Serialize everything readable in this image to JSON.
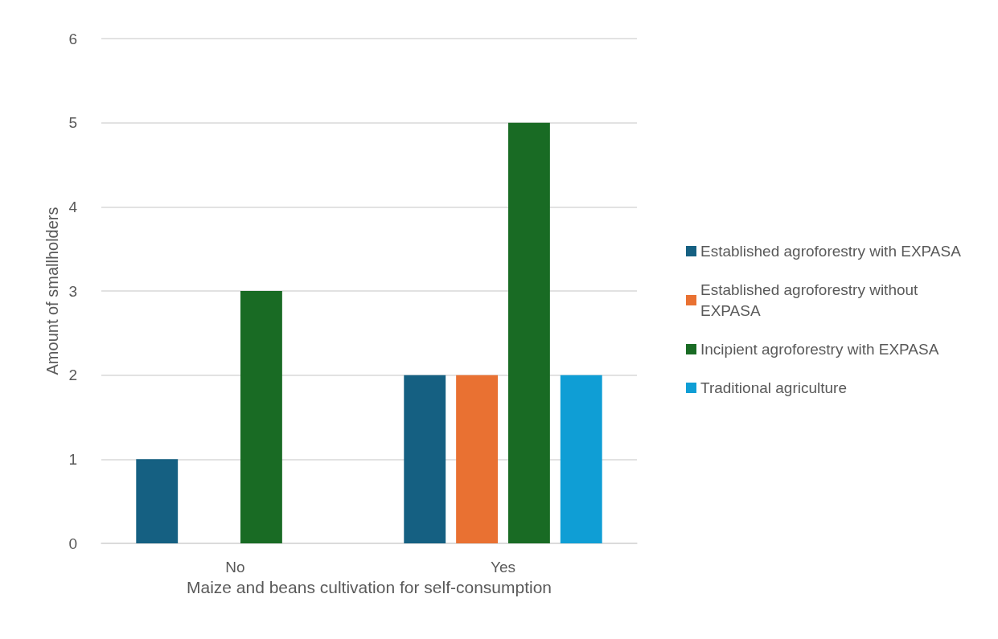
{
  "chart_data": {
    "type": "bar",
    "xlabel": "Maize and beans cultivation for self-consumption",
    "ylabel": "Amount of smallholders",
    "categories": [
      "No",
      "Yes"
    ],
    "series": [
      {
        "name": "Established agroforestry with EXPASA",
        "color": "#156082",
        "values": [
          1,
          2
        ]
      },
      {
        "name": "Established agroforestry without EXPASA",
        "color": "#e97132",
        "values": [
          0,
          2
        ]
      },
      {
        "name": "Incipient agroforestry with EXPASA",
        "color": "#196b24",
        "values": [
          3,
          5
        ]
      },
      {
        "name": "Traditional agriculture",
        "color": "#0f9ed5",
        "values": [
          0,
          2
        ]
      }
    ],
    "ylim": [
      0,
      6
    ],
    "yticks": [
      0,
      1,
      2,
      3,
      4,
      5,
      6
    ],
    "grid": "y",
    "legend": "right"
  }
}
